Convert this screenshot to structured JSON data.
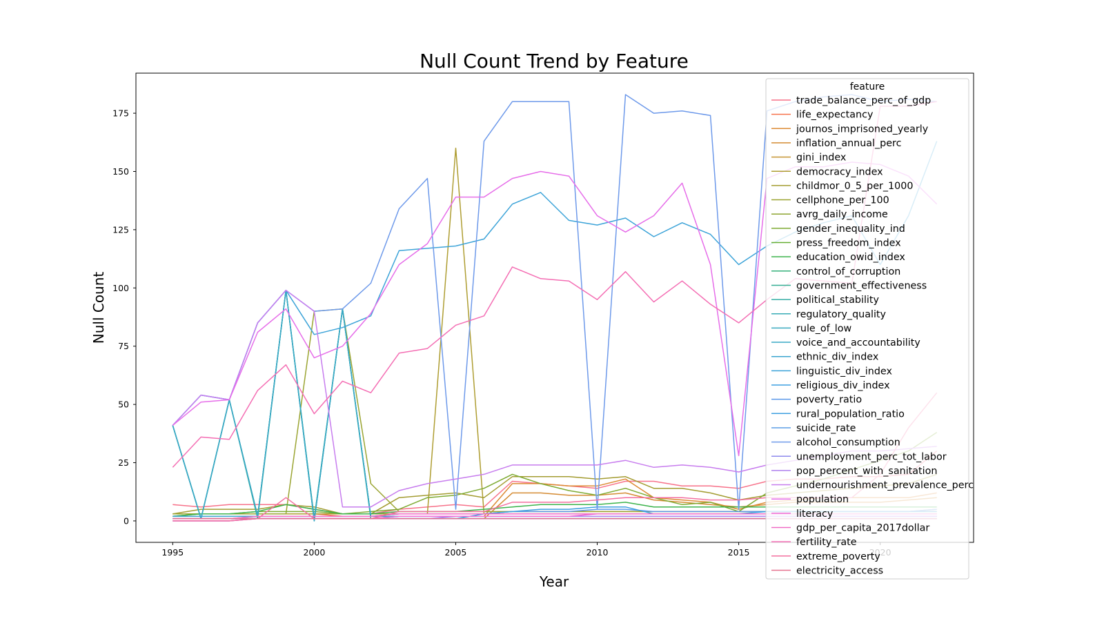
{
  "chart_data": {
    "type": "line",
    "title": "Null Count Trend by Feature",
    "xlabel": "Year",
    "ylabel": "Null Count",
    "xlim": [
      1993.7,
      2023.3
    ],
    "ylim": [
      -9.2,
      192.2
    ],
    "x_ticks": [
      1995,
      2000,
      2005,
      2010,
      2015,
      2020
    ],
    "y_ticks": [
      0,
      25,
      50,
      75,
      100,
      125,
      150,
      175
    ],
    "grid": false,
    "legend_title": "feature",
    "legend_position": "top-right",
    "x": [
      1995,
      1996,
      1997,
      1998,
      1999,
      2000,
      2001,
      2002,
      2003,
      2004,
      2005,
      2006,
      2007,
      2008,
      2009,
      2010,
      2011,
      2012,
      2013,
      2014,
      2015,
      2016,
      2017,
      2018,
      2019,
      2020,
      2021,
      2022
    ],
    "series": [
      {
        "name": "trade_balance_perc_of_gdp",
        "color": "#f77189",
        "values": [
          7,
          6,
          7,
          7,
          7,
          5,
          3,
          3,
          5,
          6,
          7,
          6,
          17,
          16,
          15,
          14,
          17,
          17,
          15,
          15,
          14,
          17,
          18,
          18,
          19,
          19,
          20,
          30
        ]
      },
      {
        "name": "life_expectancy",
        "color": "#f7754f",
        "values": [
          3,
          3,
          3,
          3,
          3,
          3,
          2,
          2,
          3,
          3,
          3,
          3,
          4,
          4,
          4,
          4,
          4,
          4,
          4,
          4,
          4,
          4,
          4,
          4,
          4,
          4,
          4,
          5
        ]
      },
      {
        "name": "journos_imprisoned_yearly",
        "color": "#dc8932",
        "values": [
          2,
          2,
          2,
          2,
          2,
          2,
          2,
          2,
          2,
          2,
          2,
          2,
          16,
          16,
          15,
          15,
          18,
          10,
          9,
          8,
          5,
          8,
          9,
          10,
          10,
          10,
          10,
          12
        ]
      },
      {
        "name": "inflation_annual_perc",
        "color": "#d48a31",
        "values": [
          1,
          1,
          1,
          1,
          1,
          1,
          1,
          1,
          1,
          1,
          1,
          1,
          12,
          12,
          11,
          11,
          12,
          9,
          8,
          7,
          6,
          7,
          8,
          8,
          8,
          8,
          9,
          10
        ]
      },
      {
        "name": "gini_index",
        "color": "#c4922f",
        "values": [
          3,
          3,
          3,
          3,
          3,
          3,
          3,
          3,
          3,
          3,
          3,
          3,
          3,
          3,
          3,
          3,
          3,
          3,
          3,
          3,
          3,
          3,
          3,
          3,
          3,
          3,
          3,
          3
        ]
      },
      {
        "name": "democracy_index",
        "color": "#ae9d31",
        "values": [
          3,
          3,
          3,
          3,
          3,
          3,
          3,
          3,
          3,
          3,
          160,
          3,
          3,
          3,
          3,
          3,
          3,
          3,
          3,
          3,
          3,
          3,
          3,
          3,
          3,
          3,
          3,
          3
        ]
      },
      {
        "name": "childmor_0_5_per_1000",
        "color": "#a39c31",
        "values": [
          3,
          5,
          5,
          5,
          7,
          6,
          3,
          3,
          10,
          11,
          12,
          10,
          19,
          19,
          19,
          18,
          19,
          14,
          14,
          12,
          9,
          11,
          12,
          13,
          14,
          15,
          16,
          20
        ]
      },
      {
        "name": "cellphone_per_100",
        "color": "#9aa431",
        "values": [
          3,
          3,
          3,
          3,
          3,
          90,
          91,
          16,
          4,
          4,
          4,
          4,
          4,
          4,
          4,
          4,
          4,
          4,
          4,
          4,
          4,
          4,
          4,
          4,
          4,
          4,
          4,
          4
        ]
      },
      {
        "name": "avrg_daily_income",
        "color": "#8ea531",
        "values": [
          2,
          2,
          2,
          2,
          2,
          2,
          2,
          2,
          2,
          2,
          2,
          2,
          2,
          2,
          2,
          2,
          2,
          2,
          2,
          2,
          2,
          2,
          2,
          2,
          2,
          2,
          2,
          2
        ]
      },
      {
        "name": "gender_inequality_ind",
        "color": "#7daa31",
        "values": [
          2,
          3,
          3,
          4,
          4,
          4,
          3,
          4,
          5,
          10,
          11,
          14,
          20,
          16,
          13,
          11,
          14,
          10,
          7,
          8,
          4,
          12,
          15,
          18,
          22,
          26,
          30,
          38
        ]
      },
      {
        "name": "press_freedom_index",
        "color": "#63ad31",
        "values": [
          2,
          2,
          2,
          2,
          2,
          2,
          2,
          2,
          2,
          2,
          2,
          2,
          2,
          2,
          2,
          2,
          2,
          2,
          2,
          2,
          2,
          2,
          2,
          2,
          2,
          2,
          2,
          2
        ]
      },
      {
        "name": "education_owid_index",
        "color": "#3bb34c",
        "values": [
          2,
          3,
          3,
          4,
          7,
          5,
          3,
          3,
          4,
          4,
          4,
          5,
          6,
          7,
          7,
          7,
          8,
          6,
          6,
          6,
          6,
          6,
          6,
          6,
          6,
          6,
          6,
          6
        ]
      },
      {
        "name": "control_of_corruption",
        "color": "#33b07a",
        "values": [
          1,
          1,
          1,
          1,
          1,
          1,
          1,
          1,
          1,
          1,
          1,
          1,
          1,
          1,
          1,
          1,
          1,
          1,
          1,
          1,
          1,
          1,
          1,
          1,
          1,
          1,
          1,
          1
        ]
      },
      {
        "name": "government_effectiveness",
        "color": "#35ae93",
        "values": [
          41,
          1,
          52,
          1,
          99,
          1,
          91,
          1,
          1,
          1,
          1,
          1,
          1,
          1,
          1,
          1,
          1,
          1,
          1,
          1,
          1,
          1,
          1,
          1,
          1,
          1,
          1,
          1
        ]
      },
      {
        "name": "political_stability",
        "color": "#36ada4",
        "values": [
          41,
          1,
          52,
          2,
          99,
          1,
          91,
          2,
          2,
          2,
          2,
          2,
          2,
          2,
          2,
          2,
          2,
          2,
          2,
          2,
          2,
          2,
          2,
          2,
          2,
          2,
          2,
          2
        ]
      },
      {
        "name": "regulatory_quality",
        "color": "#37abb4",
        "values": [
          41,
          1,
          52,
          2,
          99,
          0,
          91,
          2,
          2,
          2,
          2,
          2,
          2,
          2,
          2,
          2,
          2,
          2,
          2,
          2,
          2,
          2,
          2,
          2,
          2,
          2,
          2,
          2
        ]
      },
      {
        "name": "rule_of_low",
        "color": "#38aabf",
        "values": [
          41,
          1,
          52,
          2,
          99,
          0,
          91,
          2,
          2,
          2,
          2,
          2,
          2,
          2,
          2,
          2,
          2,
          2,
          2,
          2,
          2,
          2,
          2,
          2,
          2,
          2,
          2,
          2
        ]
      },
      {
        "name": "voice_and_accountability",
        "color": "#39a8c5",
        "values": [
          41,
          1,
          52,
          2,
          99,
          0,
          91,
          2,
          2,
          2,
          2,
          2,
          2,
          2,
          2,
          2,
          2,
          2,
          2,
          2,
          2,
          2,
          2,
          2,
          2,
          2,
          2,
          2
        ]
      },
      {
        "name": "ethnic_div_index",
        "color": "#3ba5cf",
        "values": [
          2,
          2,
          2,
          2,
          2,
          2,
          2,
          2,
          2,
          2,
          2,
          2,
          2,
          2,
          2,
          2,
          2,
          2,
          2,
          2,
          2,
          2,
          2,
          2,
          2,
          2,
          2,
          2
        ]
      },
      {
        "name": "linguistic_div_index",
        "color": "#3ca3d8",
        "values": [
          41,
          54,
          52,
          85,
          99,
          80,
          83,
          88,
          116,
          117,
          118,
          121,
          136,
          141,
          129,
          127,
          130,
          122,
          128,
          123,
          110,
          118,
          124,
          128,
          131,
          110,
          131,
          163
        ]
      },
      {
        "name": "religious_div_index",
        "color": "#3d9fe1",
        "values": [
          1,
          1,
          1,
          1,
          1,
          1,
          1,
          1,
          2,
          2,
          2,
          2,
          2,
          2,
          2,
          2,
          2,
          2,
          2,
          2,
          2,
          2,
          2,
          2,
          2,
          2,
          2,
          2
        ]
      },
      {
        "name": "poverty_ratio",
        "color": "#5c99ea",
        "values": [
          1,
          1,
          1,
          2,
          2,
          2,
          2,
          2,
          3,
          3,
          3,
          3,
          4,
          4,
          4,
          5,
          5,
          4,
          4,
          4,
          4,
          4,
          4,
          4,
          4,
          4,
          4,
          5
        ]
      },
      {
        "name": "rural_population_ratio",
        "color": "#3c9fe0",
        "values": [
          1,
          1,
          1,
          1,
          1,
          1,
          1,
          1,
          1,
          1,
          1,
          3,
          4,
          5,
          5,
          6,
          6,
          3,
          3,
          3,
          3,
          4,
          4,
          4,
          4,
          4,
          4,
          4
        ]
      },
      {
        "name": "suicide_rate",
        "color": "#5b9de6",
        "values": [
          1,
          1,
          1,
          1,
          1,
          1,
          1,
          1,
          1,
          1,
          1,
          1,
          1,
          1,
          1,
          1,
          1,
          1,
          1,
          1,
          1,
          1,
          1,
          1,
          1,
          1,
          1,
          1
        ]
      },
      {
        "name": "alcohol_consumption",
        "color": "#6d99ea",
        "values": [
          41,
          54,
          52,
          85,
          99,
          90,
          91,
          102,
          134,
          147,
          5,
          163,
          180,
          180,
          180,
          5,
          183,
          175,
          176,
          174,
          5,
          176,
          180,
          182,
          183,
          180,
          181,
          180
        ]
      },
      {
        "name": "unemployment_perc_tot_labor",
        "color": "#8e89ed",
        "values": [
          0,
          0,
          0,
          1,
          1,
          1,
          1,
          1,
          1,
          1,
          1,
          1,
          1,
          1,
          1,
          1,
          1,
          1,
          1,
          1,
          1,
          1,
          1,
          1,
          1,
          1,
          1,
          1
        ]
      },
      {
        "name": "pop_percent_with_sanitation",
        "color": "#ae7fee",
        "values": [
          0,
          0,
          0,
          1,
          1,
          1,
          1,
          1,
          1,
          1,
          2,
          2,
          2,
          2,
          2,
          2,
          2,
          2,
          2,
          2,
          2,
          2,
          2,
          2,
          2,
          2,
          2,
          2
        ]
      },
      {
        "name": "undernourishment_prevalence_perc",
        "color": "#c77cee",
        "values": [
          41,
          54,
          52,
          85,
          99,
          90,
          6,
          6,
          13,
          16,
          18,
          20,
          24,
          24,
          24,
          24,
          26,
          23,
          24,
          23,
          21,
          24,
          26,
          28,
          30,
          30,
          31,
          32
        ]
      },
      {
        "name": "population",
        "color": "#e66de9",
        "values": [
          41,
          51,
          52,
          81,
          91,
          70,
          75,
          89,
          110,
          119,
          139,
          139,
          147,
          150,
          148,
          131,
          124,
          131,
          145,
          110,
          28,
          147,
          152,
          152,
          154,
          153,
          148,
          136
        ]
      },
      {
        "name": "literacy",
        "color": "#ee69d5",
        "values": [
          0,
          0,
          0,
          1,
          1,
          1,
          1,
          1,
          2,
          2,
          2,
          2,
          2,
          2,
          2,
          3,
          3,
          3,
          3,
          3,
          3,
          3,
          3,
          3,
          3,
          3,
          3,
          3
        ]
      },
      {
        "name": "gdp_per_capita_2017dollar",
        "color": "#f06bc5",
        "values": [
          1,
          1,
          1,
          2,
          2,
          2,
          2,
          2,
          3,
          3,
          3,
          3,
          3,
          3,
          3,
          3,
          3,
          3,
          3,
          3,
          3,
          3,
          3,
          3,
          3,
          3,
          3,
          3
        ]
      },
      {
        "name": "fertility_rate",
        "color": "#f46db3",
        "values": [
          23,
          36,
          35,
          56,
          67,
          46,
          60,
          55,
          72,
          74,
          84,
          88,
          109,
          104,
          103,
          95,
          107,
          94,
          103,
          93,
          85,
          95,
          104,
          103,
          102,
          178,
          178,
          180
        ]
      },
      {
        "name": "extreme_poverty",
        "color": "#f36f9f",
        "values": [
          0,
          0,
          0,
          1,
          10,
          1,
          1,
          1,
          4,
          4,
          4,
          4,
          8,
          8,
          8,
          9,
          10,
          10,
          10,
          9,
          9,
          10,
          10,
          10,
          10,
          20,
          40,
          55
        ]
      },
      {
        "name": "electricity_access",
        "color": "#e6738f",
        "values": [
          1,
          1,
          1,
          1,
          1,
          1,
          1,
          1,
          1,
          1,
          1,
          1,
          1,
          1,
          1,
          1,
          1,
          1,
          1,
          1,
          1,
          1,
          1,
          1,
          1,
          1,
          1,
          1
        ]
      }
    ]
  }
}
